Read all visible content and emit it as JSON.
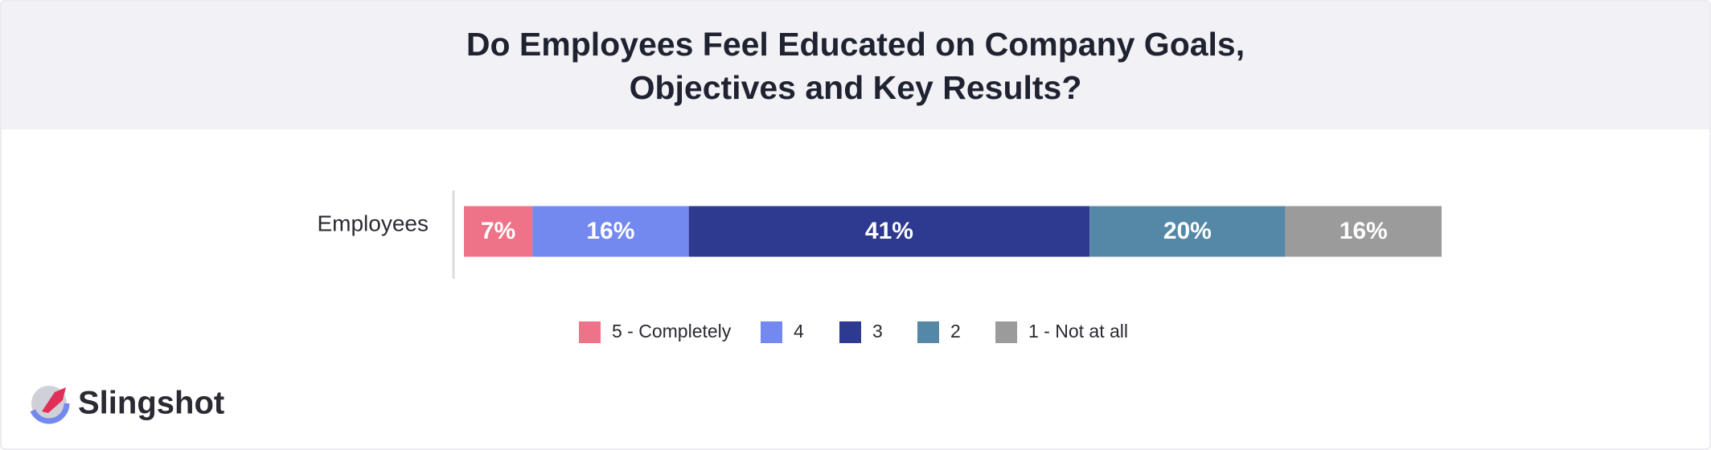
{
  "chart_data": {
    "type": "bar",
    "orientation": "horizontal",
    "stacked": true,
    "title": "Do Employees Feel Educated on Company Goals, Objectives and Key Results?",
    "categories": [
      "Employees"
    ],
    "series": [
      {
        "name": "5 - Completely",
        "color": "#ee7388",
        "values": [
          7
        ],
        "value_labels": [
          "7%"
        ]
      },
      {
        "name": "4",
        "color": "#7489f0",
        "values": [
          16
        ],
        "value_labels": [
          "16%"
        ]
      },
      {
        "name": "3",
        "color": "#2e3990",
        "values": [
          41
        ],
        "value_labels": [
          "41%"
        ]
      },
      {
        "name": "2",
        "color": "#5588a6",
        "values": [
          20
        ],
        "value_labels": [
          "20%"
        ]
      },
      {
        "name": "1 - Not at all",
        "color": "#9b9b9b",
        "values": [
          16
        ],
        "value_labels": [
          "16%"
        ]
      }
    ],
    "legend": "bottom"
  },
  "brand": "Slingshot"
}
